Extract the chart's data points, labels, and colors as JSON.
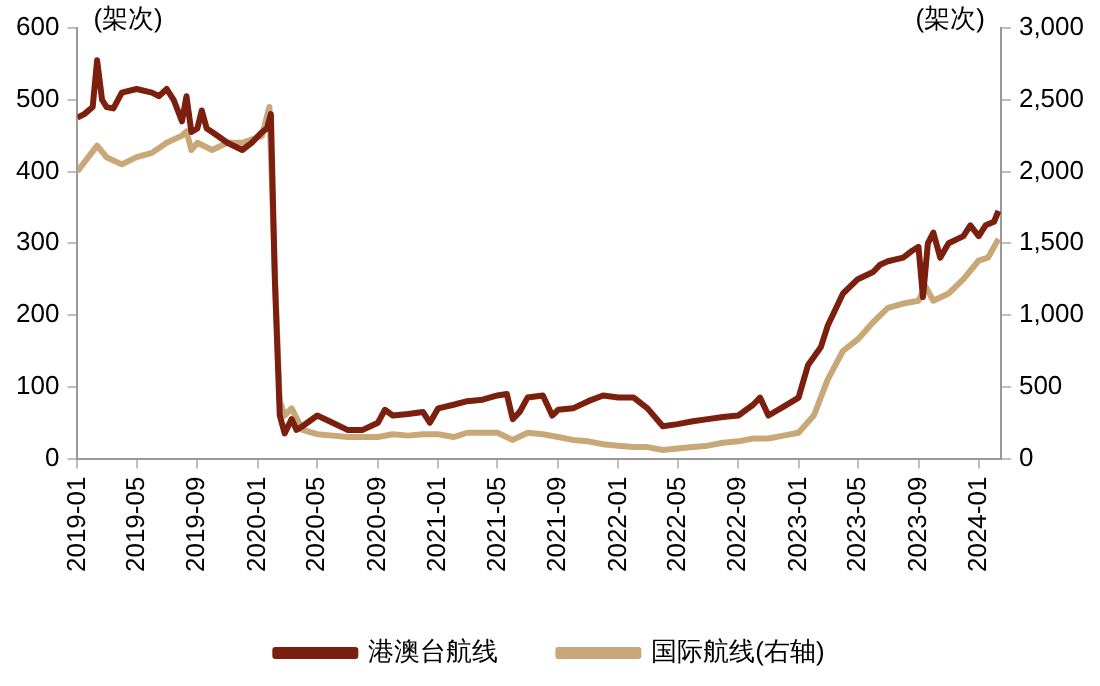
{
  "chart_data": {
    "type": "line",
    "ylabel": "(架次)",
    "y2label": "(架次)",
    "xlim": [
      "2019-01-01",
      "2024-02-15"
    ],
    "xticks": [
      {
        "value": "2019-01",
        "label": "2019-01"
      },
      {
        "value": "2019-05",
        "label": "2019-05"
      },
      {
        "value": "2019-09",
        "label": "2019-09"
      },
      {
        "value": "2020-01",
        "label": "2020-01"
      },
      {
        "value": "2020-05",
        "label": "2020-05"
      },
      {
        "value": "2020-09",
        "label": "2020-09"
      },
      {
        "value": "2021-01",
        "label": "2021-01"
      },
      {
        "value": "2021-05",
        "label": "2021-05"
      },
      {
        "value": "2021-09",
        "label": "2021-09"
      },
      {
        "value": "2022-01",
        "label": "2022-01"
      },
      {
        "value": "2022-05",
        "label": "2022-05"
      },
      {
        "value": "2022-09",
        "label": "2022-09"
      },
      {
        "value": "2023-01",
        "label": "2023-01"
      },
      {
        "value": "2023-05",
        "label": "2023-05"
      },
      {
        "value": "2023-09",
        "label": "2023-09"
      },
      {
        "value": "2024-01",
        "label": "2024-01"
      }
    ],
    "ylim": [
      0,
      600
    ],
    "yticks": [
      0,
      100,
      200,
      300,
      400,
      500,
      600
    ],
    "y2lim": [
      0,
      3000
    ],
    "y2ticks": [
      {
        "value": 0,
        "label": "0"
      },
      {
        "value": 500,
        "label": "500"
      },
      {
        "value": 1000,
        "label": "1,000"
      },
      {
        "value": 1500,
        "label": "1,500"
      },
      {
        "value": 2000,
        "label": "2,000"
      },
      {
        "value": 2500,
        "label": "2,500"
      },
      {
        "value": 3000,
        "label": "3,000"
      }
    ],
    "grid": false,
    "legend": "bottom",
    "marker": "none",
    "line_style": "solid",
    "series": [
      {
        "name": "港澳台航线",
        "color": "#7b1f0e",
        "x": [
          "2019-01-01",
          "2019-01-15",
          "2019-02-01",
          "2019-02-10",
          "2019-02-20",
          "2019-03-01",
          "2019-03-15",
          "2019-04-01",
          "2019-05-01",
          "2019-06-01",
          "2019-06-15",
          "2019-07-01",
          "2019-07-15",
          "2019-08-01",
          "2019-08-10",
          "2019-08-20",
          "2019-09-01",
          "2019-09-10",
          "2019-09-20",
          "2019-10-01",
          "2019-11-01",
          "2019-12-01",
          "2019-12-20",
          "2020-01-10",
          "2020-01-20",
          "2020-01-28",
          "2020-02-05",
          "2020-02-15",
          "2020-02-25",
          "2020-03-10",
          "2020-03-20",
          "2020-04-01",
          "2020-05-01",
          "2020-06-01",
          "2020-07-01",
          "2020-08-01",
          "2020-09-01",
          "2020-09-15",
          "2020-10-01",
          "2020-11-01",
          "2020-12-01",
          "2020-12-15",
          "2021-01-01",
          "2021-02-01",
          "2021-03-01",
          "2021-04-01",
          "2021-05-01",
          "2021-05-20",
          "2021-06-01",
          "2021-06-15",
          "2021-07-01",
          "2021-08-01",
          "2021-08-20",
          "2021-09-01",
          "2021-10-01",
          "2021-11-01",
          "2021-12-01",
          "2022-01-01",
          "2022-02-01",
          "2022-03-01",
          "2022-04-01",
          "2022-05-01",
          "2022-06-01",
          "2022-07-01",
          "2022-08-01",
          "2022-09-01",
          "2022-10-01",
          "2022-10-15",
          "2022-11-01",
          "2022-12-01",
          "2023-01-01",
          "2023-01-20",
          "2023-02-15",
          "2023-03-01",
          "2023-04-01",
          "2023-05-01",
          "2023-06-01",
          "2023-06-15",
          "2023-07-01",
          "2023-08-01",
          "2023-08-20",
          "2023-09-01",
          "2023-09-10",
          "2023-09-20",
          "2023-10-01",
          "2023-10-15",
          "2023-11-01",
          "2023-12-01",
          "2023-12-15",
          "2024-01-01",
          "2024-01-15",
          "2024-02-01",
          "2024-02-10"
        ],
        "values": [
          475,
          480,
          490,
          555,
          500,
          490,
          488,
          510,
          515,
          510,
          505,
          515,
          500,
          470,
          505,
          455,
          460,
          485,
          460,
          455,
          440,
          430,
          440,
          455,
          460,
          480,
          250,
          60,
          35,
          55,
          40,
          45,
          60,
          50,
          40,
          40,
          50,
          68,
          60,
          62,
          65,
          50,
          70,
          75,
          80,
          82,
          88,
          90,
          55,
          65,
          85,
          88,
          60,
          68,
          70,
          80,
          88,
          85,
          85,
          70,
          45,
          48,
          52,
          55,
          58,
          60,
          75,
          85,
          60,
          72,
          85,
          130,
          155,
          185,
          230,
          250,
          260,
          270,
          275,
          280,
          290,
          295,
          225,
          300,
          315,
          280,
          300,
          310,
          325,
          310,
          325,
          330,
          345
        ]
      },
      {
        "name": "国际航线(右轴)",
        "color": "#c9a878",
        "axis": "y2",
        "x": [
          "2019-01-01",
          "2019-02-10",
          "2019-03-01",
          "2019-04-01",
          "2019-05-01",
          "2019-06-01",
          "2019-07-01",
          "2019-08-01",
          "2019-08-10",
          "2019-08-20",
          "2019-09-01",
          "2019-10-01",
          "2019-11-01",
          "2019-12-01",
          "2020-01-10",
          "2020-01-25",
          "2020-02-05",
          "2020-02-15",
          "2020-02-25",
          "2020-03-10",
          "2020-04-01",
          "2020-05-01",
          "2020-06-01",
          "2020-07-01",
          "2020-08-01",
          "2020-09-01",
          "2020-10-01",
          "2020-11-01",
          "2020-12-01",
          "2021-01-01",
          "2021-02-01",
          "2021-03-01",
          "2021-04-01",
          "2021-05-01",
          "2021-06-01",
          "2021-07-01",
          "2021-08-01",
          "2021-09-01",
          "2021-10-01",
          "2021-11-01",
          "2021-12-01",
          "2022-01-01",
          "2022-02-01",
          "2022-03-01",
          "2022-04-01",
          "2022-05-01",
          "2022-06-01",
          "2022-07-01",
          "2022-08-01",
          "2022-09-01",
          "2022-10-01",
          "2022-11-01",
          "2022-12-01",
          "2023-01-01",
          "2023-02-01",
          "2023-03-01",
          "2023-04-01",
          "2023-05-01",
          "2023-06-01",
          "2023-07-01",
          "2023-08-01",
          "2023-09-01",
          "2023-09-15",
          "2023-10-01",
          "2023-11-01",
          "2023-12-01",
          "2024-01-01",
          "2024-01-20",
          "2024-02-10"
        ],
        "values": [
          2000,
          2180,
          2100,
          2050,
          2100,
          2130,
          2200,
          2250,
          2280,
          2150,
          2200,
          2150,
          2200,
          2200,
          2250,
          2450,
          1300,
          400,
          300,
          350,
          200,
          170,
          160,
          150,
          150,
          150,
          170,
          160,
          170,
          170,
          150,
          180,
          180,
          180,
          130,
          180,
          170,
          150,
          130,
          120,
          100,
          90,
          80,
          80,
          60,
          70,
          80,
          90,
          110,
          120,
          140,
          140,
          160,
          180,
          300,
          550,
          750,
          830,
          950,
          1050,
          1080,
          1100,
          1200,
          1100,
          1150,
          1250,
          1380,
          1400,
          1530
        ]
      }
    ]
  }
}
